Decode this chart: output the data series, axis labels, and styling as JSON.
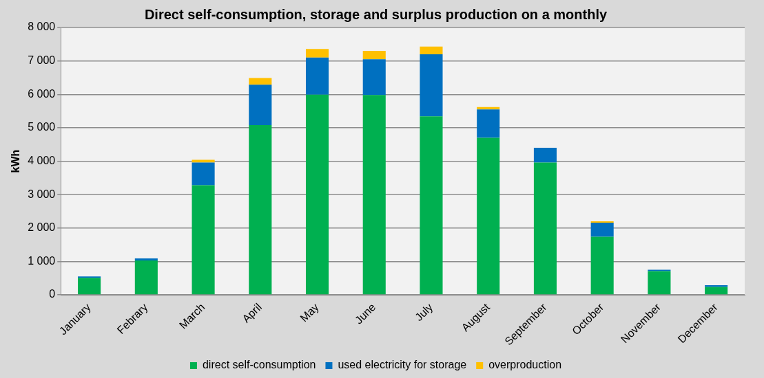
{
  "chart_data": {
    "type": "bar",
    "title": "Direct self-consumption, storage and surplus production on a monthly",
    "ylabel": "kWh",
    "categories": [
      "January",
      "Febrary",
      "March",
      "April",
      "May",
      "June",
      "July",
      "August",
      "September",
      "October",
      "November",
      "December"
    ],
    "stacked": true,
    "series": [
      {
        "name": "direct self-consumption",
        "color": "#00b050",
        "values": [
          510,
          1030,
          3280,
          5080,
          5990,
          5980,
          5340,
          4700,
          3960,
          1740,
          710,
          240
        ]
      },
      {
        "name": "used electricity for storage",
        "color": "#0070c0",
        "values": [
          40,
          60,
          680,
          1210,
          1110,
          1070,
          1860,
          850,
          440,
          420,
          40,
          50
        ]
      },
      {
        "name": "overproduction",
        "color": "#ffc000",
        "values": [
          0,
          0,
          80,
          200,
          260,
          250,
          230,
          70,
          0,
          40,
          0,
          0
        ]
      }
    ],
    "ylim": [
      0,
      8000
    ],
    "yticks": [
      {
        "value": 0,
        "label": "0"
      },
      {
        "value": 1000,
        "label": "1 000"
      },
      {
        "value": 2000,
        "label": "2 000"
      },
      {
        "value": 3000,
        "label": "3 000"
      },
      {
        "value": 4000,
        "label": "4 000"
      },
      {
        "value": 5000,
        "label": "5 000"
      },
      {
        "value": 6000,
        "label": "6 000"
      },
      {
        "value": 7000,
        "label": "7 000"
      },
      {
        "value": 8000,
        "label": "8 000"
      }
    ],
    "grid": "y",
    "legend": "bottom"
  }
}
